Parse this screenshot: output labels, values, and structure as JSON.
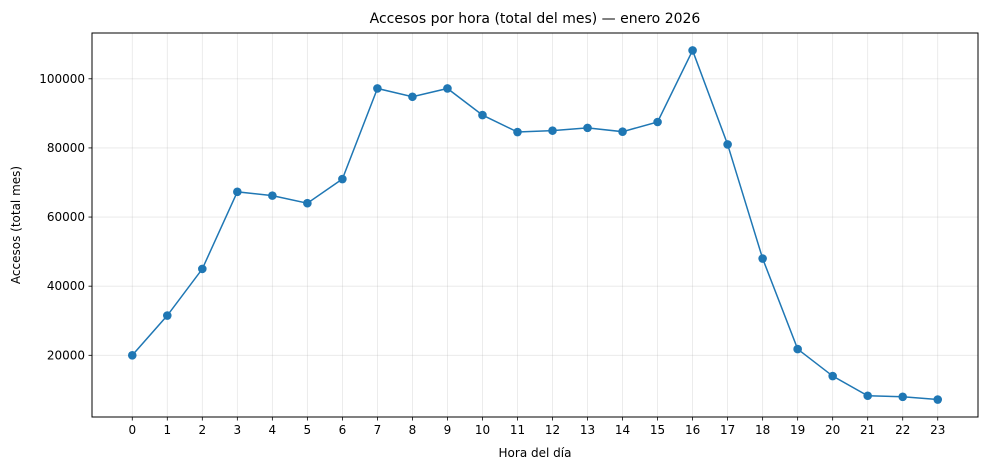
{
  "chart_data": {
    "type": "line",
    "title": "Accesos por hora (total del mes) — enero 2026",
    "xlabel": "Hora del día",
    "ylabel": "Accesos (total mes)",
    "x": [
      0,
      1,
      2,
      3,
      4,
      5,
      6,
      7,
      8,
      9,
      10,
      11,
      12,
      13,
      14,
      15,
      16,
      17,
      18,
      19,
      20,
      21,
      22,
      23
    ],
    "x_tick_labels": [
      "0",
      "1",
      "2",
      "3",
      "4",
      "5",
      "6",
      "7",
      "8",
      "9",
      "10",
      "11",
      "12",
      "13",
      "14",
      "15",
      "16",
      "17",
      "18",
      "19",
      "20",
      "21",
      "22",
      "23"
    ],
    "series": [
      {
        "values": [
          20000,
          31500,
          45000,
          67300,
          66200,
          64000,
          71000,
          97200,
          94800,
          97200,
          89500,
          84600,
          85000,
          85800,
          84700,
          87500,
          108200,
          81000,
          48000,
          21800,
          14000,
          8300,
          8000,
          7200
        ],
        "color": "#1f77b4",
        "marker": "circle"
      }
    ],
    "xlim": [
      -1.15,
      24.15
    ],
    "ylim": [
      2150,
      113250
    ],
    "y_ticks": [
      20000,
      40000,
      60000,
      80000,
      100000
    ],
    "y_tick_labels": [
      "20000",
      "40000",
      "60000",
      "80000",
      "100000"
    ],
    "grid": true,
    "legend": "none"
  }
}
